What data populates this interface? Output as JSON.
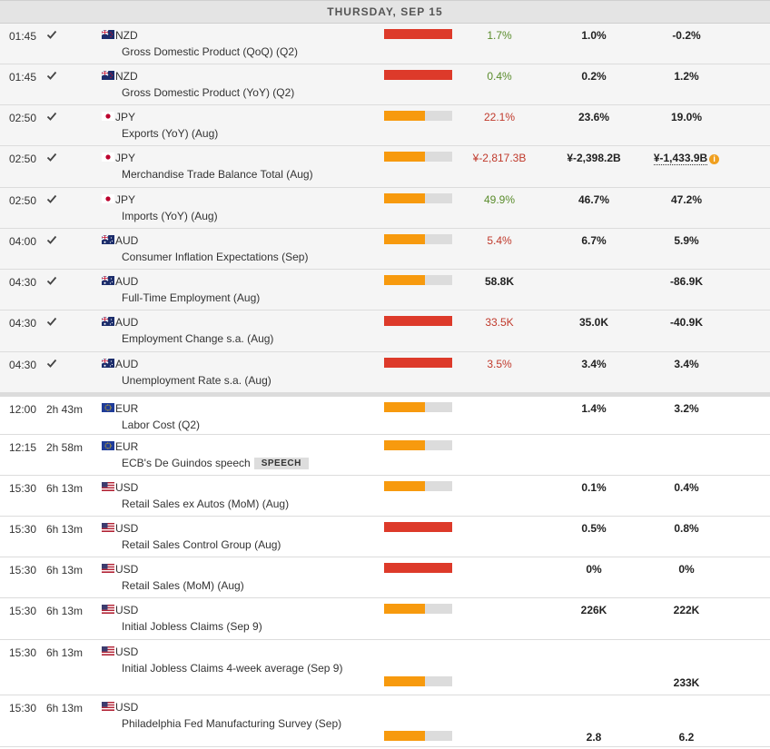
{
  "day_header": "THURSDAY, SEP 15",
  "icons": {
    "check": "checkmark-icon",
    "info": "info-icon",
    "nzd": "new-zealand-flag-icon",
    "jpy": "japan-flag-icon",
    "aud": "australia-flag-icon",
    "eur": "european-union-flag-icon",
    "usd": "united-states-flag-icon"
  },
  "colors": {
    "impact_high": "#dd3a2a",
    "impact_medium": "#f79a0e",
    "actual_better": "#5a8c2c",
    "actual_worse": "#c0392b"
  },
  "events": [
    {
      "time": "01:45",
      "done": true,
      "countdown": "",
      "currency": "NZD",
      "name": "Gross Domestic Product (QoQ) (Q2)",
      "badge": "",
      "impact": "high",
      "actual": "1.7%",
      "actual_dir": "pos",
      "consensus": "1.0%",
      "previous": "-0.2%",
      "previous_revised": false
    },
    {
      "time": "01:45",
      "done": true,
      "countdown": "",
      "currency": "NZD",
      "name": "Gross Domestic Product (YoY) (Q2)",
      "badge": "",
      "impact": "high",
      "actual": "0.4%",
      "actual_dir": "pos",
      "consensus": "0.2%",
      "previous": "1.2%",
      "previous_revised": false
    },
    {
      "time": "02:50",
      "done": true,
      "countdown": "",
      "currency": "JPY",
      "name": "Exports (YoY) (Aug)",
      "badge": "",
      "impact": "medium",
      "actual": "22.1%",
      "actual_dir": "neg",
      "consensus": "23.6%",
      "previous": "19.0%",
      "previous_revised": false
    },
    {
      "time": "02:50",
      "done": true,
      "countdown": "",
      "currency": "JPY",
      "name": "Merchandise Trade Balance Total (Aug)",
      "badge": "",
      "impact": "medium",
      "actual": "¥-2,817.3B",
      "actual_dir": "neg",
      "consensus": "¥-2,398.2B",
      "previous": "¥-1,433.9B",
      "previous_revised": true
    },
    {
      "time": "02:50",
      "done": true,
      "countdown": "",
      "currency": "JPY",
      "name": "Imports (YoY) (Aug)",
      "badge": "",
      "impact": "medium",
      "actual": "49.9%",
      "actual_dir": "pos",
      "consensus": "46.7%",
      "previous": "47.2%",
      "previous_revised": false
    },
    {
      "time": "04:00",
      "done": true,
      "countdown": "",
      "currency": "AUD",
      "name": "Consumer Inflation Expectations (Sep)",
      "badge": "",
      "impact": "medium",
      "actual": "5.4%",
      "actual_dir": "neg",
      "consensus": "6.7%",
      "previous": "5.9%",
      "previous_revised": false
    },
    {
      "time": "04:30",
      "done": true,
      "countdown": "",
      "currency": "AUD",
      "name": "Full-Time Employment (Aug)",
      "badge": "",
      "impact": "medium",
      "actual": "58.8K",
      "actual_dir": "neu",
      "consensus": "",
      "previous": "-86.9K",
      "previous_revised": false
    },
    {
      "time": "04:30",
      "done": true,
      "countdown": "",
      "currency": "AUD",
      "name": "Employment Change s.a. (Aug)",
      "badge": "",
      "impact": "high",
      "actual": "33.5K",
      "actual_dir": "neg",
      "consensus": "35.0K",
      "previous": "-40.9K",
      "previous_revised": false
    },
    {
      "time": "04:30",
      "done": true,
      "countdown": "",
      "currency": "AUD",
      "name": "Unemployment Rate s.a. (Aug)",
      "badge": "",
      "impact": "high",
      "actual": "3.5%",
      "actual_dir": "neg",
      "consensus": "3.4%",
      "previous": "3.4%",
      "previous_revised": false
    },
    {
      "time": "12:00",
      "done": false,
      "countdown": "2h 43m",
      "currency": "EUR",
      "name": "Labor Cost (Q2)",
      "badge": "",
      "impact": "medium",
      "actual": "",
      "actual_dir": "",
      "consensus": "1.4%",
      "previous": "3.2%",
      "previous_revised": false
    },
    {
      "time": "12:15",
      "done": false,
      "countdown": "2h 58m",
      "currency": "EUR",
      "name": "ECB's De Guindos speech",
      "badge": "SPEECH",
      "impact": "medium",
      "actual": "",
      "actual_dir": "",
      "consensus": "",
      "previous": "",
      "previous_revised": false
    },
    {
      "time": "15:30",
      "done": false,
      "countdown": "6h 13m",
      "currency": "USD",
      "name": "Retail Sales ex Autos (MoM) (Aug)",
      "badge": "",
      "impact": "medium",
      "actual": "",
      "actual_dir": "",
      "consensus": "0.1%",
      "previous": "0.4%",
      "previous_revised": false
    },
    {
      "time": "15:30",
      "done": false,
      "countdown": "6h 13m",
      "currency": "USD",
      "name": "Retail Sales Control Group (Aug)",
      "badge": "",
      "impact": "high",
      "actual": "",
      "actual_dir": "",
      "consensus": "0.5%",
      "previous": "0.8%",
      "previous_revised": false
    },
    {
      "time": "15:30",
      "done": false,
      "countdown": "6h 13m",
      "currency": "USD",
      "name": "Retail Sales (MoM) (Aug)",
      "badge": "",
      "impact": "high",
      "actual": "",
      "actual_dir": "",
      "consensus": "0%",
      "previous": "0%",
      "previous_revised": false
    },
    {
      "time": "15:30",
      "done": false,
      "countdown": "6h 13m",
      "currency": "USD",
      "name": "Initial Jobless Claims (Sep 9)",
      "badge": "",
      "impact": "medium",
      "actual": "",
      "actual_dir": "",
      "consensus": "226K",
      "previous": "222K",
      "previous_revised": false
    },
    {
      "time": "15:30",
      "done": false,
      "countdown": "6h 13m",
      "currency": "USD",
      "name": "Initial Jobless Claims 4-week average (Sep 9)",
      "badge": "",
      "impact": "medium",
      "actual": "",
      "actual_dir": "",
      "consensus": "",
      "previous": "233K",
      "previous_revised": false
    },
    {
      "time": "15:30",
      "done": false,
      "countdown": "6h 13m",
      "currency": "USD",
      "name": "Philadelphia Fed Manufacturing Survey (Sep)",
      "badge": "",
      "impact": "medium",
      "actual": "",
      "actual_dir": "",
      "consensus": "2.8",
      "previous": "6.2",
      "previous_revised": false
    }
  ]
}
